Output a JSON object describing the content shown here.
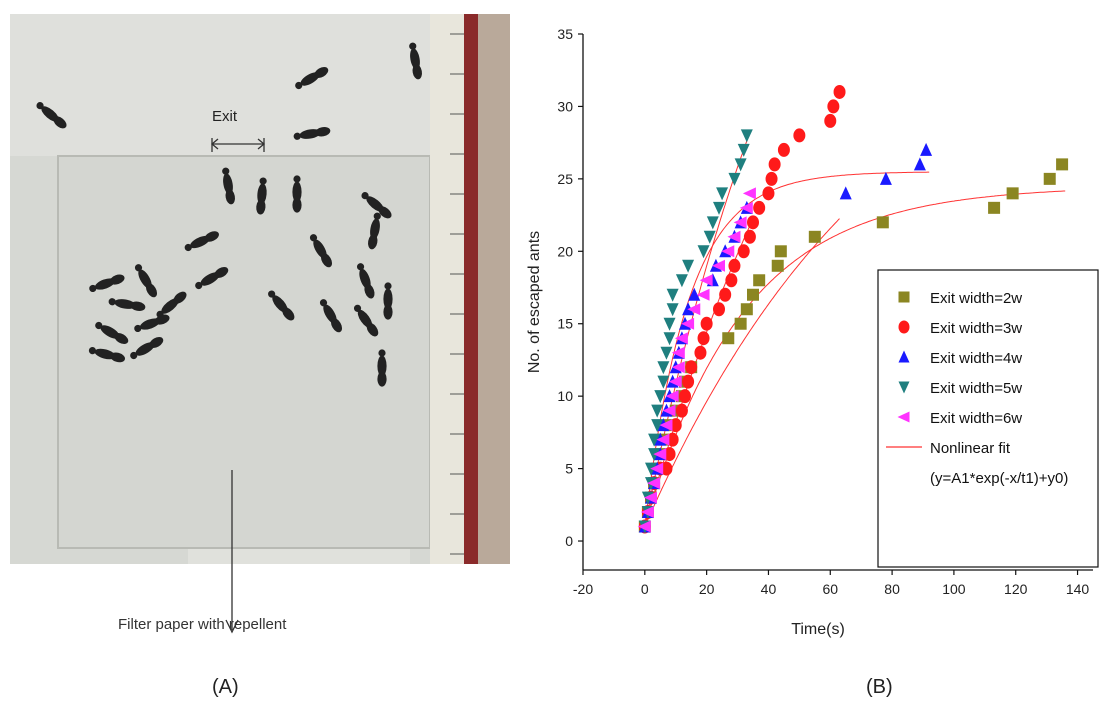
{
  "panel_a": {
    "exit_label": "Exit",
    "filter_label": "Filter paper with repellent",
    "caption": "(A)"
  },
  "panel_b": {
    "caption": "(B)"
  },
  "colors": {
    "w2": "#8b8622",
    "w3": "#ff1a1a",
    "w4": "#1a1aff",
    "w5": "#1f7f7f",
    "w6": "#ff33ff",
    "fit": "#ff3333"
  },
  "chart_data": {
    "type": "scatter",
    "xlabel": "Time(s)",
    "ylabel": "No. of escaped ants",
    "xlim": [
      -20,
      145
    ],
    "ylim": [
      -2,
      35
    ],
    "xticks": [
      -20,
      0,
      20,
      40,
      60,
      80,
      100,
      120,
      140
    ],
    "yticks": [
      0,
      5,
      10,
      15,
      20,
      25,
      30,
      35
    ],
    "grid": false,
    "legend_position": "right",
    "series": [
      {
        "name": "Exit width=2w",
        "marker": "square",
        "color_key": "w2",
        "points": [
          [
            0,
            1
          ],
          [
            1,
            2
          ],
          [
            2,
            3
          ],
          [
            3,
            4
          ],
          [
            4,
            5
          ],
          [
            5,
            6
          ],
          [
            6,
            7
          ],
          [
            8,
            8
          ],
          [
            10,
            9
          ],
          [
            12,
            10
          ],
          [
            13,
            11
          ],
          [
            15,
            12
          ],
          [
            27,
            14
          ],
          [
            31,
            15
          ],
          [
            33,
            16
          ],
          [
            35,
            17
          ],
          [
            37,
            18
          ],
          [
            43,
            19
          ],
          [
            44,
            20
          ],
          [
            55,
            21
          ],
          [
            77,
            22
          ],
          [
            113,
            23
          ],
          [
            119,
            24
          ],
          [
            131,
            25
          ],
          [
            135,
            26
          ]
        ]
      },
      {
        "name": "Exit width=3w",
        "marker": "circle",
        "color_key": "w3",
        "points": [
          [
            0,
            1
          ],
          [
            1,
            2
          ],
          [
            2,
            3
          ],
          [
            3,
            4
          ],
          [
            5,
            5
          ],
          [
            7,
            5
          ],
          [
            8,
            6
          ],
          [
            9,
            7
          ],
          [
            10,
            8
          ],
          [
            12,
            9
          ],
          [
            13,
            10
          ],
          [
            14,
            11
          ],
          [
            15,
            12
          ],
          [
            18,
            13
          ],
          [
            19,
            14
          ],
          [
            20,
            15
          ],
          [
            24,
            16
          ],
          [
            26,
            17
          ],
          [
            28,
            18
          ],
          [
            29,
            19
          ],
          [
            32,
            20
          ],
          [
            34,
            21
          ],
          [
            35,
            22
          ],
          [
            37,
            23
          ],
          [
            40,
            24
          ],
          [
            41,
            25
          ],
          [
            42,
            26
          ],
          [
            45,
            27
          ],
          [
            50,
            28
          ],
          [
            60,
            29
          ],
          [
            61,
            30
          ],
          [
            63,
            31
          ]
        ]
      },
      {
        "name": "Exit width=4w",
        "marker": "triangle-up",
        "color_key": "w4",
        "points": [
          [
            0,
            1
          ],
          [
            1,
            2
          ],
          [
            2,
            3
          ],
          [
            3,
            4
          ],
          [
            4,
            5
          ],
          [
            5,
            6
          ],
          [
            5,
            7
          ],
          [
            6,
            8
          ],
          [
            7,
            9
          ],
          [
            8,
            10
          ],
          [
            9,
            11
          ],
          [
            10,
            12
          ],
          [
            11,
            13
          ],
          [
            12,
            14
          ],
          [
            13,
            15
          ],
          [
            14,
            16
          ],
          [
            16,
            17
          ],
          [
            22,
            18
          ],
          [
            23,
            19
          ],
          [
            26,
            20
          ],
          [
            29,
            21
          ],
          [
            31,
            22
          ],
          [
            33,
            23
          ],
          [
            65,
            24
          ],
          [
            78,
            25
          ],
          [
            89,
            26
          ],
          [
            91,
            27
          ]
        ]
      },
      {
        "name": "Exit width=5w",
        "marker": "triangle-down",
        "color_key": "w5",
        "points": [
          [
            0,
            1
          ],
          [
            1,
            2
          ],
          [
            1,
            3
          ],
          [
            2,
            4
          ],
          [
            2,
            5
          ],
          [
            3,
            6
          ],
          [
            3,
            7
          ],
          [
            4,
            8
          ],
          [
            4,
            9
          ],
          [
            5,
            10
          ],
          [
            6,
            11
          ],
          [
            6,
            12
          ],
          [
            7,
            13
          ],
          [
            8,
            14
          ],
          [
            8,
            15
          ],
          [
            9,
            16
          ],
          [
            9,
            17
          ],
          [
            12,
            18
          ],
          [
            14,
            19
          ],
          [
            19,
            20
          ],
          [
            21,
            21
          ],
          [
            22,
            22
          ],
          [
            24,
            23
          ],
          [
            25,
            24
          ],
          [
            29,
            25
          ],
          [
            31,
            26
          ],
          [
            32,
            27
          ],
          [
            33,
            28
          ]
        ]
      },
      {
        "name": "Exit width=6w",
        "marker": "triangle-left",
        "color_key": "w6",
        "points": [
          [
            0,
            1
          ],
          [
            1,
            2
          ],
          [
            2,
            3
          ],
          [
            3,
            4
          ],
          [
            4,
            5
          ],
          [
            5,
            6
          ],
          [
            6,
            7
          ],
          [
            7,
            8
          ],
          [
            8,
            9
          ],
          [
            9,
            10
          ],
          [
            10,
            11
          ],
          [
            11,
            12
          ],
          [
            11,
            13
          ],
          [
            12,
            14
          ],
          [
            14,
            15
          ],
          [
            16,
            16
          ],
          [
            19,
            17
          ],
          [
            20,
            18
          ],
          [
            24,
            19
          ],
          [
            27,
            20
          ],
          [
            29,
            21
          ],
          [
            31,
            22
          ],
          [
            33,
            23
          ],
          [
            34,
            24
          ]
        ]
      }
    ],
    "fit_legend": [
      "Nonlinear fit",
      "(y=A1*exp(-x/t1)+y0)"
    ]
  }
}
